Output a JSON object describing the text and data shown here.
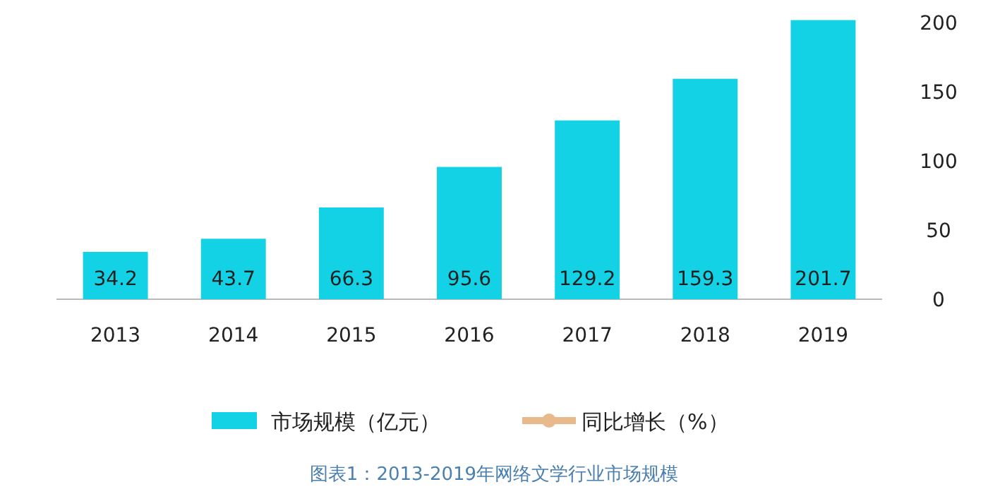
{
  "chart_data": {
    "type": "bar",
    "categories": [
      "2013",
      "2014",
      "2015",
      "2016",
      "2017",
      "2018",
      "2019"
    ],
    "series": [
      {
        "name": "市场规模（亿元）",
        "color": "#14d2e6",
        "values": [
          34.2,
          43.7,
          66.3,
          95.6,
          129.2,
          159.3,
          201.7
        ]
      },
      {
        "name": "同比增长（%）",
        "type": "line",
        "color": "#e8b98a",
        "marker": "circle",
        "values": [
          null,
          null,
          null,
          null,
          null,
          null,
          null
        ]
      }
    ],
    "ylim": [
      0,
      205
    ],
    "yticks": [
      0,
      50,
      100,
      150,
      200
    ],
    "data_labels": true,
    "legend": "bottom",
    "grid": false,
    "annotations": [
      "图表1：2013-2019年网络文学行业市场规模"
    ]
  }
}
